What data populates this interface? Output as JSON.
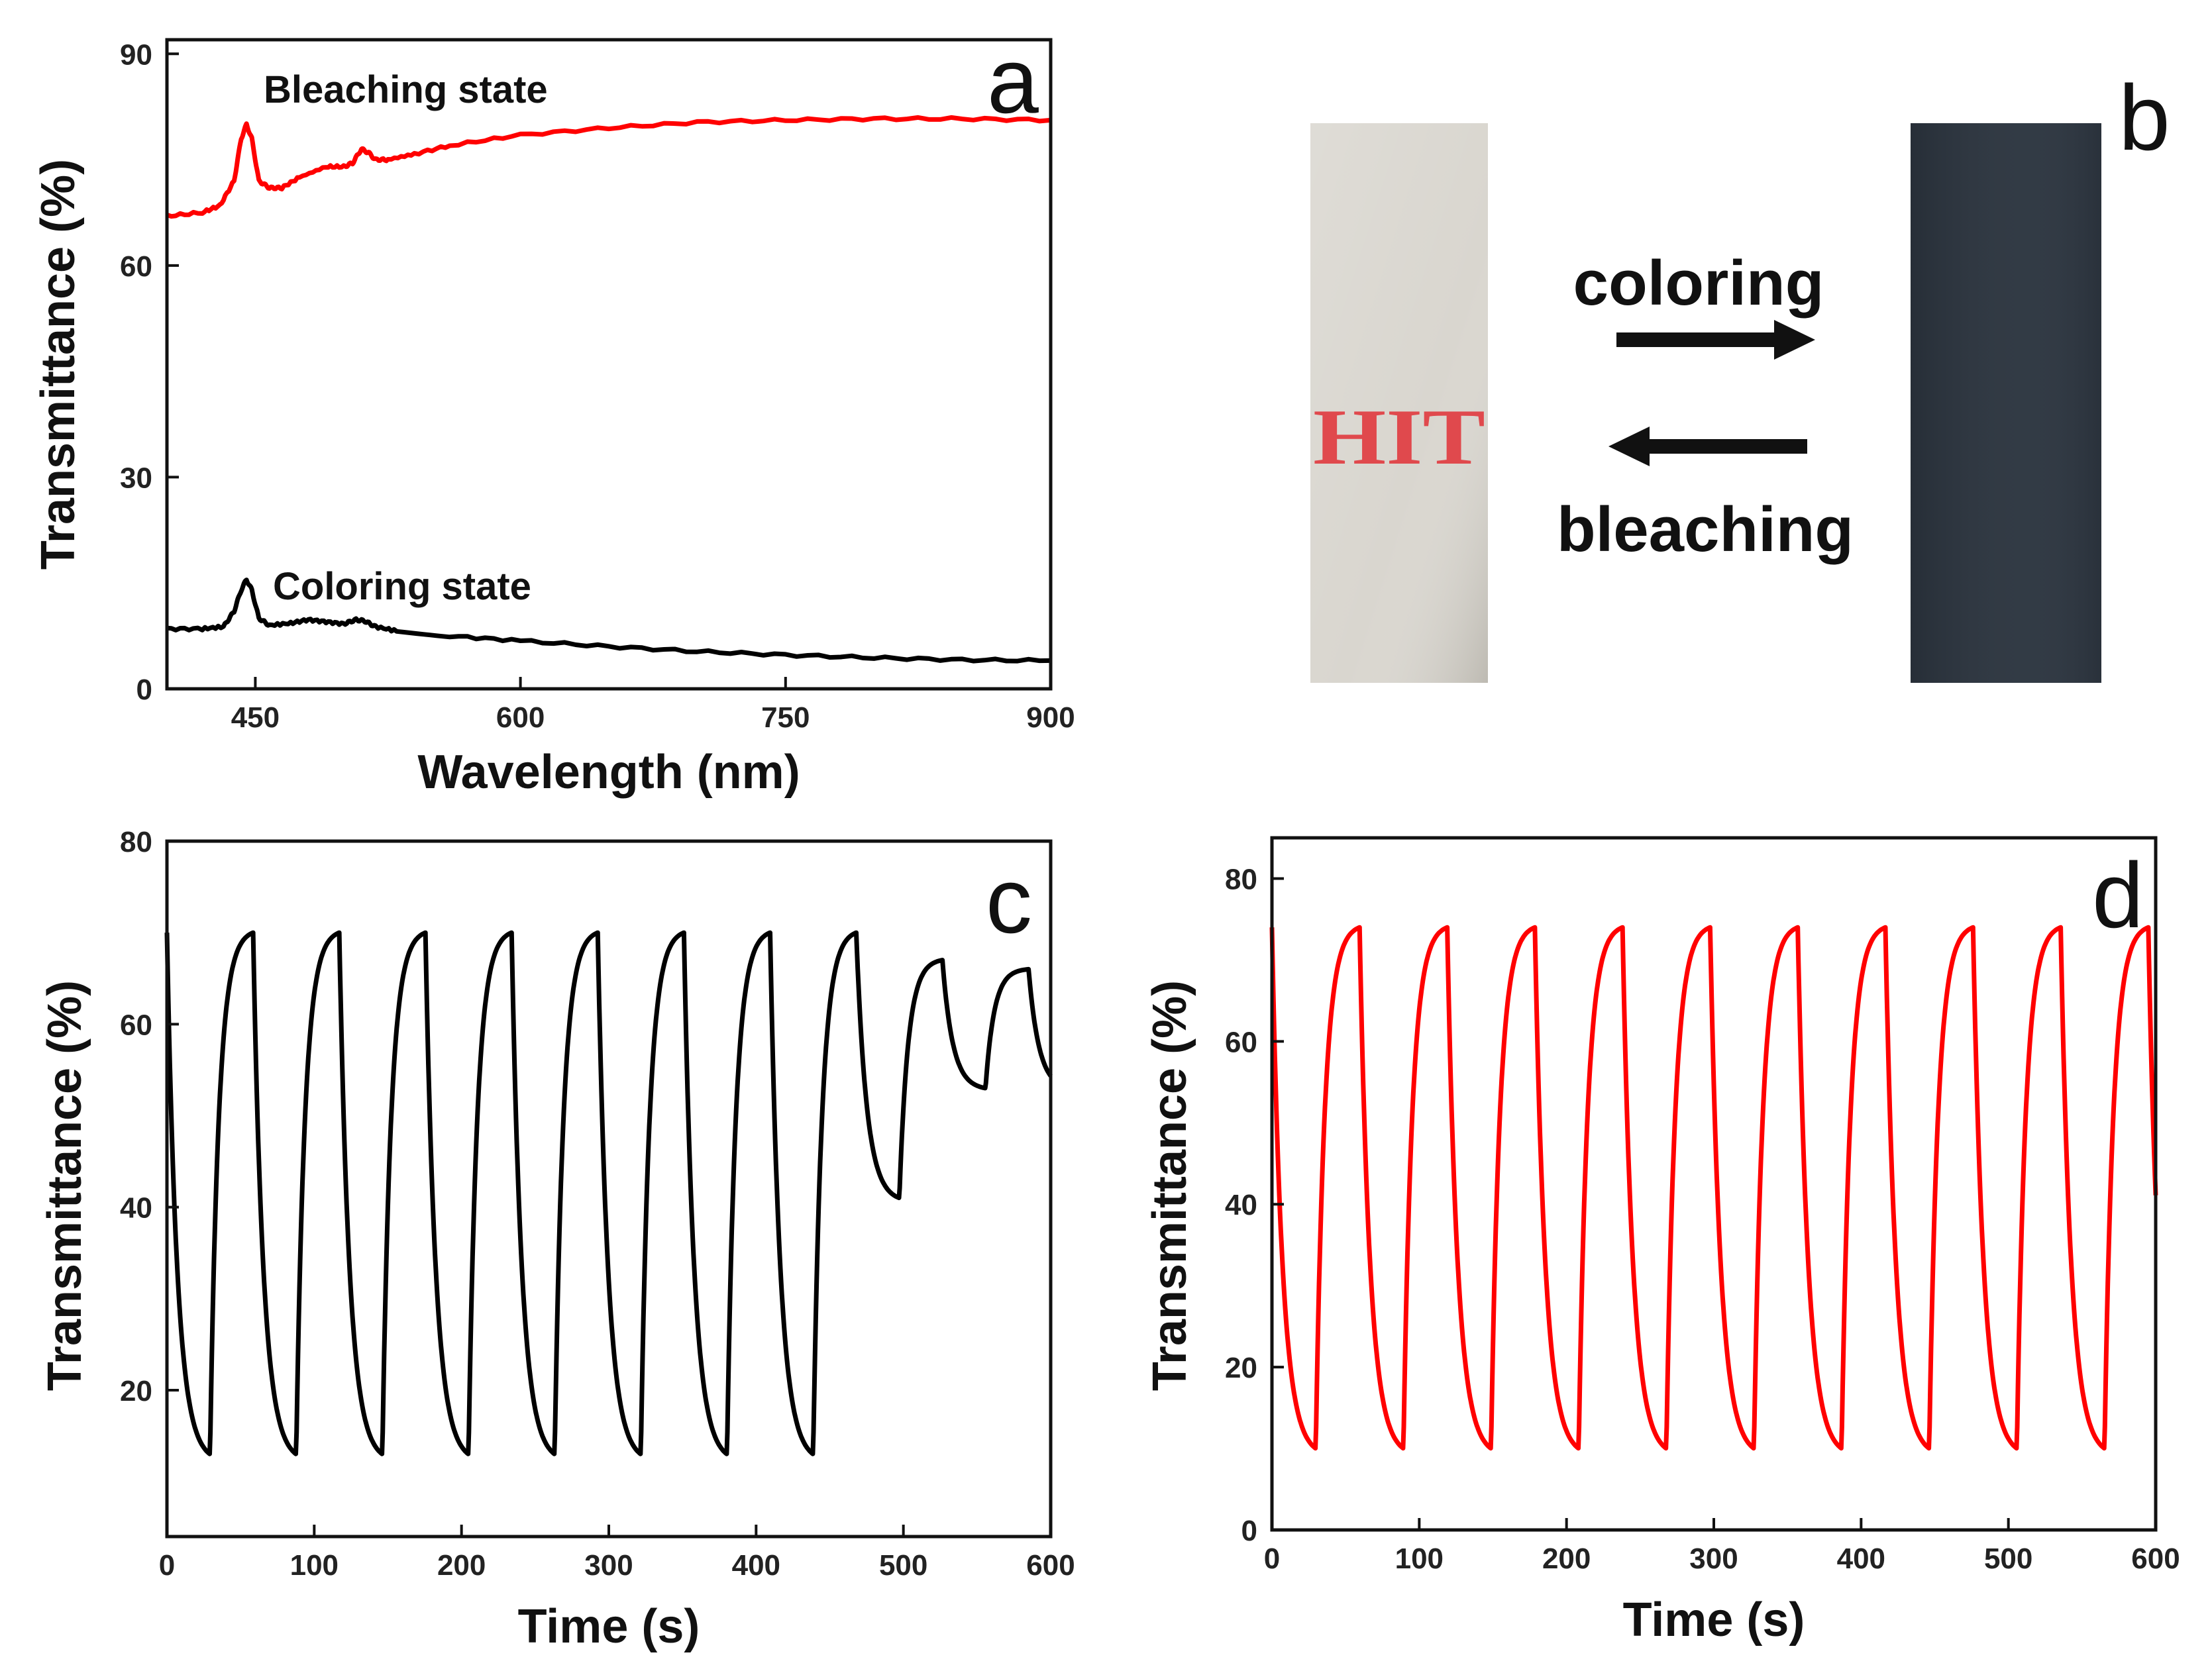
{
  "chart_data": [
    {
      "panel": "a",
      "type": "line",
      "xlabel": "Wavelength (nm)",
      "ylabel": "Transmittance (%)",
      "xlim": [
        400,
        900
      ],
      "ylim": [
        0,
        92
      ],
      "xticks": [
        450,
        600,
        750,
        900
      ],
      "yticks": [
        0,
        30,
        60,
        90
      ],
      "series": [
        {
          "color": "#ff0000",
          "x": [
            400,
            420,
            430,
            438,
            442,
            445,
            448,
            452,
            458,
            465,
            475,
            490,
            500,
            505,
            510,
            514,
            518,
            525,
            540,
            560,
            600,
            650,
            700,
            750,
            800,
            850,
            900
          ],
          "y": [
            67,
            67.5,
            68.5,
            72,
            78,
            80,
            78,
            72,
            71,
            71,
            72.5,
            74,
            74,
            74.5,
            76.5,
            76,
            75,
            75,
            75.8,
            77,
            78.5,
            79.5,
            80.3,
            80.6,
            80.8,
            80.8,
            80.6
          ],
          "annotation": "Bleaching state"
        },
        {
          "color": "#000000",
          "x": [
            400,
            420,
            432,
            438,
            442,
            445,
            448,
            452,
            458,
            470,
            480,
            490,
            500,
            507,
            512,
            518,
            530,
            560,
            600,
            650,
            700,
            750,
            800,
            850,
            900
          ],
          "y": [
            8.5,
            8.5,
            8.8,
            11,
            14,
            15.5,
            14,
            10,
            9,
            9.3,
            9.8,
            9.5,
            9.2,
            9.8,
            9.6,
            8.8,
            8.2,
            7.5,
            6.8,
            6,
            5.3,
            4.8,
            4.4,
            4.1,
            4
          ],
          "annotation": "Coloring state"
        }
      ]
    },
    {
      "panel": "c",
      "type": "line",
      "xlabel": "Time (s)",
      "ylabel": "Transmittance (%)",
      "xlim": [
        0,
        600
      ],
      "ylim": [
        4,
        80
      ],
      "xticks": [
        0,
        100,
        200,
        300,
        400,
        500,
        600
      ],
      "yticks": [
        20,
        40,
        60,
        80
      ],
      "period_s": 58.5,
      "bleached_max": [
        70,
        70,
        70,
        70,
        70,
        70,
        70,
        70,
        67,
        66
      ],
      "colored_min": [
        13,
        13,
        13,
        13,
        13,
        13,
        13,
        13,
        41,
        53
      ],
      "color": "#000000"
    },
    {
      "panel": "d",
      "type": "line",
      "xlabel": "Time (s)",
      "ylabel": "Transmittance (%)",
      "xlim": [
        0,
        600
      ],
      "ylim": [
        0,
        85
      ],
      "xticks": [
        0,
        100,
        200,
        300,
        400,
        500,
        600
      ],
      "yticks": [
        0,
        20,
        40,
        60,
        80
      ],
      "period_s": 59.5,
      "bleached_max": 74,
      "colored_min": 10,
      "color": "#ff0000"
    }
  ],
  "panel_labels": {
    "a": "a",
    "b": "b",
    "c": "c",
    "d": "d"
  },
  "photo": {
    "coloring_label": "coloring",
    "bleaching_label": "bleaching",
    "sample_text": "HIT",
    "bleached_film_color": "#d9d6cf",
    "colored_film_color": "#2e3640"
  }
}
